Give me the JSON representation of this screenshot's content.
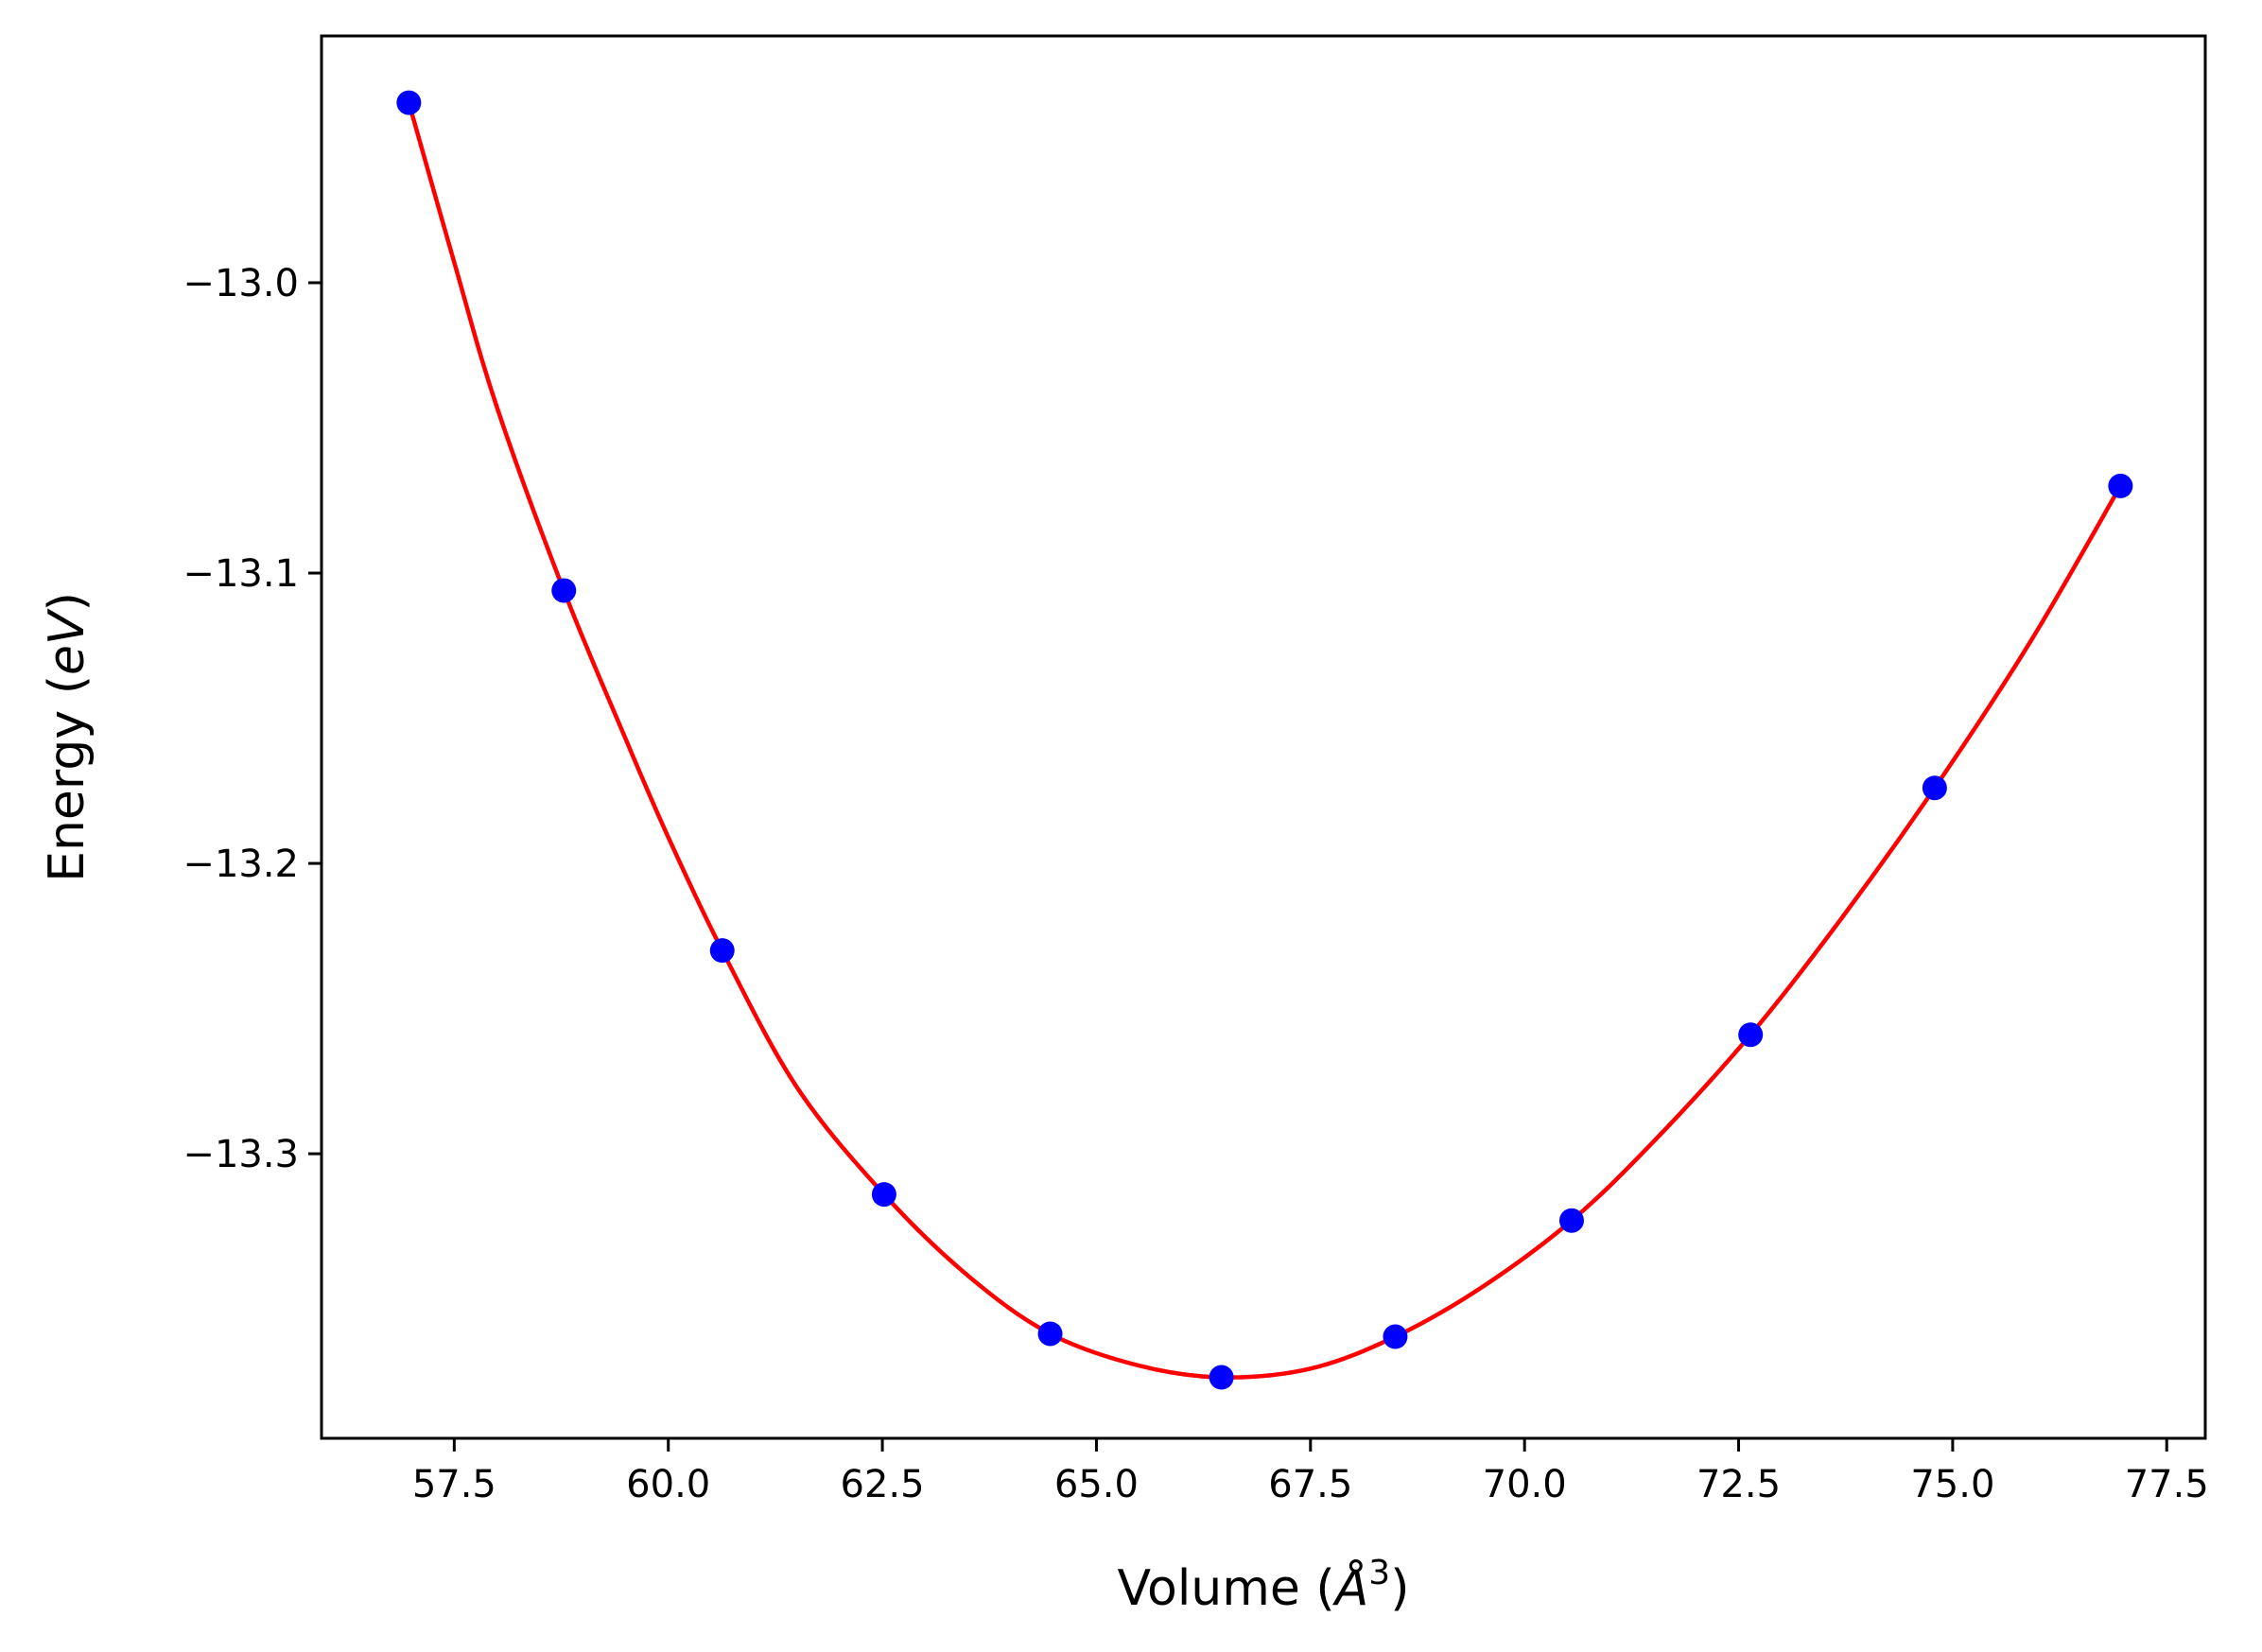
{
  "chart_data": {
    "type": "scatter",
    "title": "",
    "xlabel": {
      "prefix": "Volume (",
      "italic": "Å",
      "sup": "3",
      "suffix": ")"
    },
    "ylabel": {
      "prefix": "Energy (",
      "italic": "eV",
      "suffix": ")"
    },
    "xlim": [
      55.95,
      77.95
    ],
    "ylim": [
      -13.398,
      -12.915
    ],
    "x_ticks": [
      57.5,
      60.0,
      62.5,
      65.0,
      67.5,
      70.0,
      72.5,
      75.0,
      77.5
    ],
    "x_tick_labels": [
      "57.5",
      "60.0",
      "62.5",
      "65.0",
      "67.5",
      "70.0",
      "72.5",
      "75.0",
      "77.5"
    ],
    "y_ticks": [
      -13.0,
      -13.1,
      -13.2,
      -13.3
    ],
    "y_tick_labels": [
      "−13.0",
      "−13.1",
      "−13.2",
      "−13.3"
    ],
    "grid": false,
    "legend": "none",
    "series": [
      {
        "kind": "points",
        "color": "#0000ff",
        "x": [
          56.97,
          58.78,
          60.63,
          62.52,
          64.46,
          66.46,
          68.49,
          70.55,
          72.64,
          74.79,
          76.96
        ],
        "y": [
          -12.938,
          -13.106,
          -13.23,
          -13.314,
          -13.362,
          -13.377,
          -13.363,
          -13.323,
          -13.259,
          -13.174,
          -13.07
        ]
      },
      {
        "kind": "fit-curve",
        "color": "#ff0000",
        "x": [
          56.97,
          57.5,
          58.0,
          58.78,
          59.5,
          60.0,
          60.63,
          61.5,
          62.52,
          63.5,
          64.46,
          65.5,
          66.46,
          67.5,
          68.49,
          69.5,
          70.55,
          71.5,
          72.64,
          73.7,
          74.79,
          75.9,
          76.96
        ],
        "y": [
          -12.938,
          -12.993,
          -13.043,
          -13.106,
          -13.157,
          -13.191,
          -13.23,
          -13.277,
          -13.314,
          -13.342,
          -13.362,
          -13.373,
          -13.377,
          -13.374,
          -13.363,
          -13.346,
          -13.323,
          -13.296,
          -13.259,
          -13.219,
          -13.174,
          -13.124,
          -13.07
        ]
      }
    ]
  }
}
